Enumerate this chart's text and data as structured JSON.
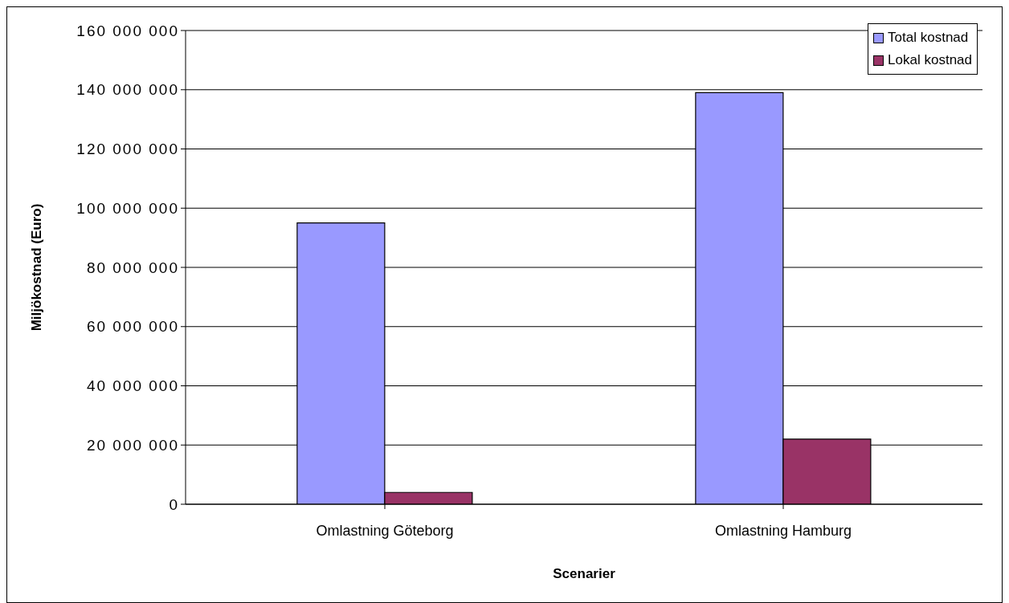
{
  "chart_data": {
    "type": "bar",
    "xlabel": "Scenarier",
    "ylabel": "Miljökostnad (Euro)",
    "categories": [
      "Omlastning Göteborg",
      "Omlastning Hamburg"
    ],
    "series": [
      {
        "name": "Total kostnad",
        "color": "#9999ff",
        "values": [
          95000000,
          139000000
        ]
      },
      {
        "name": "Lokal kostnad",
        "color": "#993366",
        "values": [
          4000000,
          22000000
        ]
      }
    ],
    "ylim": [
      0,
      160000000
    ],
    "yticks": [
      {
        "value": 0,
        "label": "0"
      },
      {
        "value": 20000000,
        "label": "20 000 000"
      },
      {
        "value": 40000000,
        "label": "40 000 000"
      },
      {
        "value": 60000000,
        "label": "60 000 000"
      },
      {
        "value": 80000000,
        "label": "80 000 000"
      },
      {
        "value": 100000000,
        "label": "100 000 000"
      },
      {
        "value": 120000000,
        "label": "120 000 000"
      },
      {
        "value": 140000000,
        "label": "140 000 000"
      },
      {
        "value": 160000000,
        "label": "160 000 000"
      }
    ],
    "grid": "y",
    "legend": "top right"
  }
}
